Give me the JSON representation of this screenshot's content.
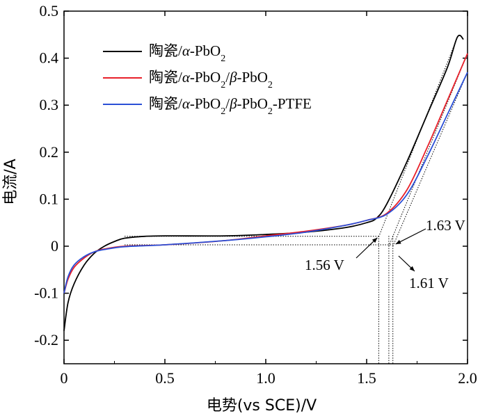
{
  "chart_data": {
    "type": "line",
    "xlabel": "电势(vs SCE)/V",
    "ylabel": "电流/A",
    "xlim": [
      0,
      2.0
    ],
    "ylim": [
      -0.25,
      0.5
    ],
    "xticks": [
      0,
      0.5,
      1.0,
      1.5,
      2.0
    ],
    "xtick_labels": [
      "0",
      "0.5",
      "1.0",
      "1.5",
      "2.0"
    ],
    "yticks": [
      -0.2,
      -0.1,
      0,
      0.1,
      0.2,
      0.3,
      0.4,
      0.5
    ],
    "ytick_labels": [
      "-0.2",
      "-0.1",
      "0",
      "0.1",
      "0.2",
      "0.3",
      "0.4",
      "0.5"
    ],
    "grid": false,
    "legend_position": "top-left",
    "series": [
      {
        "name": "陶瓷/α-PbO₂",
        "legend_parts": [
          {
            "t": "陶瓷/"
          },
          {
            "t": "α",
            "style": "italic"
          },
          {
            "t": "-PbO"
          },
          {
            "t": "2",
            "sub": true
          }
        ],
        "color": "#000000",
        "points": [
          [
            0,
            -0.18
          ],
          [
            0.02,
            -0.12
          ],
          [
            0.05,
            -0.08
          ],
          [
            0.1,
            -0.04
          ],
          [
            0.15,
            -0.015
          ],
          [
            0.2,
            0.0
          ],
          [
            0.25,
            0.01
          ],
          [
            0.3,
            0.017
          ],
          [
            0.4,
            0.021
          ],
          [
            0.5,
            0.022
          ],
          [
            0.8,
            0.022
          ],
          [
            1.0,
            0.025
          ],
          [
            1.2,
            0.03
          ],
          [
            1.4,
            0.04
          ],
          [
            1.5,
            0.05
          ],
          [
            1.55,
            0.06
          ],
          [
            1.6,
            0.09
          ],
          [
            1.7,
            0.18
          ],
          [
            1.8,
            0.28
          ],
          [
            1.9,
            0.38
          ],
          [
            1.95,
            0.445
          ],
          [
            1.98,
            0.44
          ]
        ]
      },
      {
        "name": "陶瓷/α-PbO₂/β-PbO₂",
        "legend_parts": [
          {
            "t": "陶瓷/"
          },
          {
            "t": "α",
            "style": "italic"
          },
          {
            "t": "-PbO"
          },
          {
            "t": "2",
            "sub": true
          },
          {
            "t": "/"
          },
          {
            "t": "β",
            "style": "italic"
          },
          {
            "t": "-PbO"
          },
          {
            "t": "2",
            "sub": true
          }
        ],
        "color": "#e8202a",
        "points": [
          [
            0,
            -0.1
          ],
          [
            0.02,
            -0.07
          ],
          [
            0.05,
            -0.045
          ],
          [
            0.1,
            -0.025
          ],
          [
            0.15,
            -0.012
          ],
          [
            0.2,
            -0.006
          ],
          [
            0.3,
            0.0
          ],
          [
            0.5,
            0.003
          ],
          [
            0.8,
            0.012
          ],
          [
            1.0,
            0.022
          ],
          [
            1.2,
            0.032
          ],
          [
            1.4,
            0.045
          ],
          [
            1.5,
            0.055
          ],
          [
            1.6,
            0.07
          ],
          [
            1.7,
            0.12
          ],
          [
            1.8,
            0.21
          ],
          [
            1.9,
            0.31
          ],
          [
            2.0,
            0.41
          ]
        ]
      },
      {
        "name": "陶瓷/α-PbO₂/β-PbO₂-PTFE",
        "legend_parts": [
          {
            "t": "陶瓷/"
          },
          {
            "t": "α",
            "style": "italic"
          },
          {
            "t": "-PbO"
          },
          {
            "t": "2",
            "sub": true
          },
          {
            "t": "/"
          },
          {
            "t": "β",
            "style": "italic"
          },
          {
            "t": "-PbO"
          },
          {
            "t": "2",
            "sub": true
          },
          {
            "t": "-PTFE"
          }
        ],
        "color": "#2a4fd6",
        "points": [
          [
            0,
            -0.1
          ],
          [
            0.02,
            -0.065
          ],
          [
            0.05,
            -0.04
          ],
          [
            0.1,
            -0.022
          ],
          [
            0.15,
            -0.012
          ],
          [
            0.2,
            -0.007
          ],
          [
            0.3,
            -0.001
          ],
          [
            0.5,
            0.003
          ],
          [
            0.8,
            0.012
          ],
          [
            1.0,
            0.02
          ],
          [
            1.2,
            0.03
          ],
          [
            1.4,
            0.045
          ],
          [
            1.5,
            0.055
          ],
          [
            1.6,
            0.068
          ],
          [
            1.7,
            0.11
          ],
          [
            1.8,
            0.19
          ],
          [
            1.9,
            0.28
          ],
          [
            2.0,
            0.37
          ]
        ]
      }
    ],
    "annotations": [
      {
        "text": "1.56 V",
        "x": 1.56,
        "y": 0.02
      },
      {
        "text": "1.61 V",
        "x": 1.61,
        "y": 0.0
      },
      {
        "text": "1.63 V",
        "x": 1.63,
        "y": 0.0
      }
    ]
  }
}
